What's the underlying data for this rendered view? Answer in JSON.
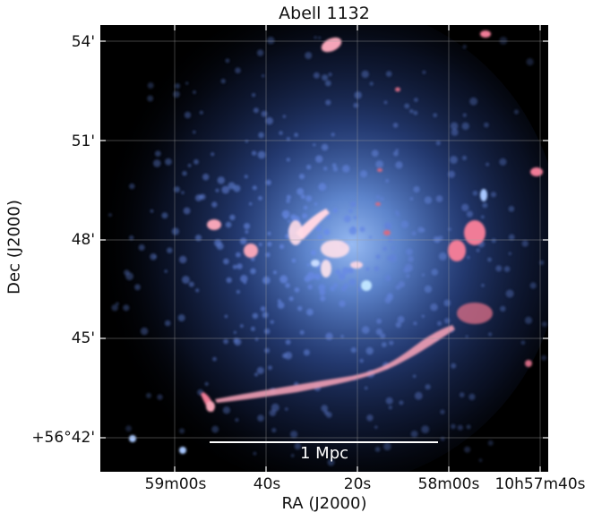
{
  "figure": {
    "title": "Abell 1132",
    "xlabel": "RA (J2000)",
    "ylabel": "Dec (J2000)",
    "scalebar_label": "1 Mpc"
  },
  "axes": {
    "y_ticks": [
      "54'",
      "51'",
      "48'",
      "45'",
      "+56°42'"
    ],
    "x_ticks": [
      "59m00s",
      "40s",
      "20s",
      "58m00s",
      "10h57m40s"
    ]
  },
  "colors": {
    "xray": "#4c73d8",
    "radio": "#f06a84",
    "background": "#000000",
    "grid": "#a0a0a0"
  }
}
